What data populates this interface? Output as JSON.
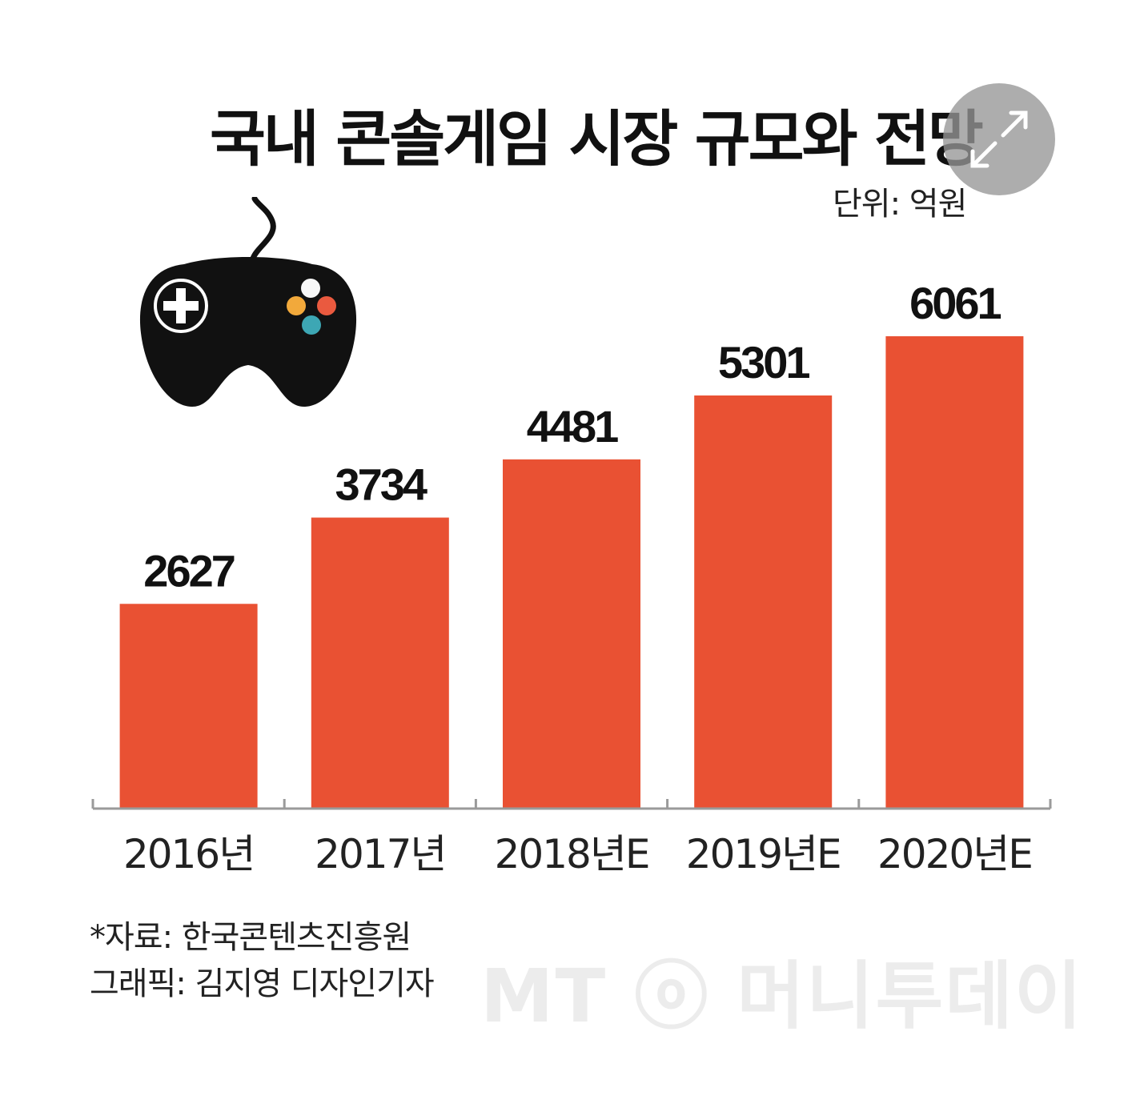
{
  "header": {
    "title": "국내 콘솔게임 시장 규모와 전망",
    "unit": "단위: 억원"
  },
  "footer": {
    "source": "*자료: 한국콘텐츠진흥원",
    "credit": "그래픽: 김지영 디자인기자",
    "watermark": "MT ⓞ 머니투데이"
  },
  "icons": {
    "controller": "game-controller-icon",
    "expand": "expand-arrows-icon"
  },
  "colors": {
    "bar": "#E95133",
    "controller_buttons": [
      "#F7F7F7",
      "#F2A93B",
      "#EA5A3F",
      "#3DA7B4"
    ]
  },
  "chart_data": {
    "type": "bar",
    "title": "국내 콘솔게임 시장 규모와 전망",
    "unit": "단위: 억원",
    "categories": [
      "2016년",
      "2017년",
      "2018년E",
      "2019년E",
      "2020년E"
    ],
    "values": [
      2627,
      3734,
      4481,
      5301,
      6061
    ],
    "ylim": [
      0,
      6061
    ],
    "grid": false,
    "legend": "none",
    "bar_color": "#E95133"
  }
}
